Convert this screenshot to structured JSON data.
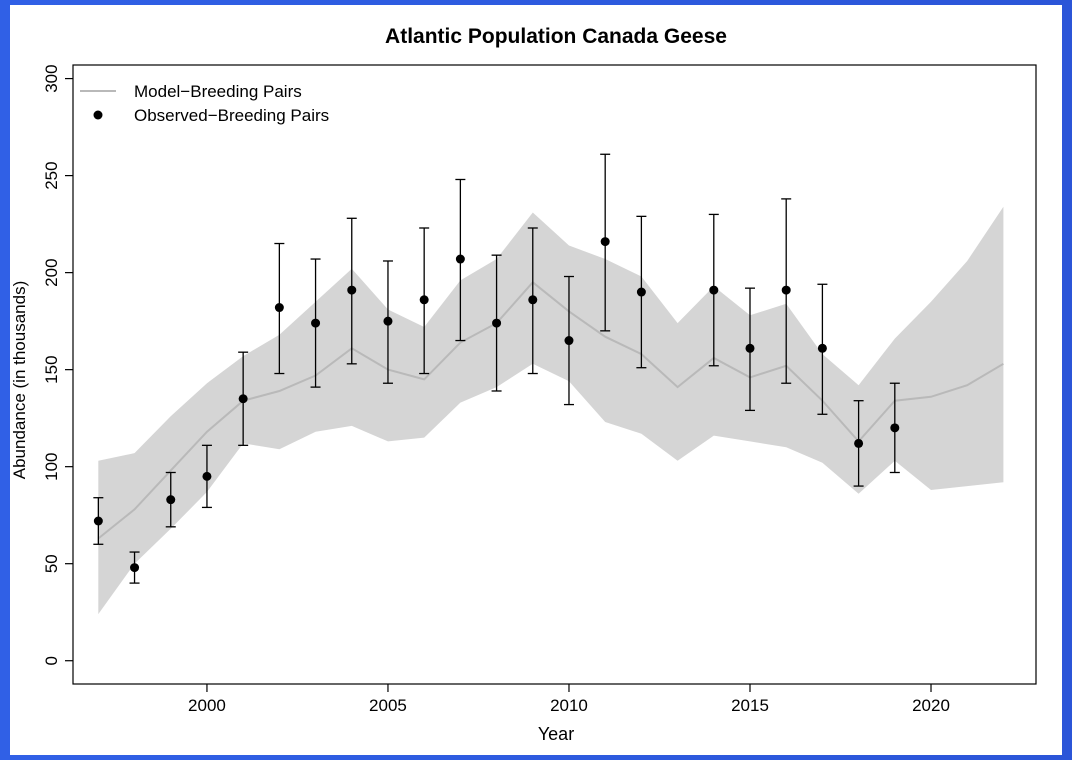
{
  "chart_data": {
    "type": "line",
    "title": "Atlantic Population Canada Geese",
    "xlabel": "Year",
    "ylabel": "Abundance (in thousands)",
    "xlim": [
      1996.3,
      2022.9
    ],
    "ylim": [
      -12,
      307
    ],
    "x_ticks": [
      2000,
      2005,
      2010,
      2015,
      2020
    ],
    "y_ticks": [
      0,
      50,
      100,
      150,
      200,
      250,
      300
    ],
    "legend_position": "top-left",
    "grid": false,
    "colors": {
      "model": "#b9b9b9",
      "band": "#d5d5d5",
      "observed": "#000000"
    },
    "model": {
      "name": "Model−Breeding Pairs",
      "x": [
        1997,
        1998,
        1999,
        2000,
        2001,
        2002,
        2003,
        2004,
        2005,
        2006,
        2007,
        2008,
        2009,
        2010,
        2011,
        2012,
        2013,
        2014,
        2015,
        2016,
        2017,
        2018,
        2019,
        2020,
        2021,
        2022
      ],
      "y": [
        63,
        78,
        98,
        118,
        134,
        139,
        147,
        161,
        150,
        145,
        164,
        174,
        195,
        180,
        167,
        158,
        141,
        156,
        146,
        152,
        134,
        113,
        134,
        136,
        142,
        153
      ],
      "lower": [
        24,
        50,
        68,
        87,
        112,
        109,
        118,
        121,
        113,
        115,
        133,
        141,
        153,
        144,
        123,
        117,
        103,
        116,
        113,
        110,
        102,
        86,
        103,
        88,
        90,
        92
      ],
      "upper": [
        103,
        107,
        126,
        143,
        157,
        168,
        185,
        202,
        181,
        172,
        196,
        207,
        231,
        214,
        207,
        198,
        174,
        193,
        178,
        184,
        158,
        142,
        166,
        185,
        206,
        234
      ]
    },
    "observed": {
      "name": "Observed−Breeding Pairs",
      "x": [
        1997,
        1998,
        1999,
        2000,
        2001,
        2002,
        2003,
        2004,
        2005,
        2006,
        2007,
        2008,
        2009,
        2010,
        2011,
        2012,
        2014,
        2015,
        2016,
        2017,
        2018,
        2019
      ],
      "y": [
        72,
        48,
        83,
        95,
        135,
        182,
        174,
        191,
        175,
        186,
        207,
        174,
        186,
        165,
        216,
        190,
        191,
        161,
        191,
        161,
        112,
        120
      ],
      "lower": [
        60,
        40,
        69,
        79,
        111,
        148,
        141,
        153,
        143,
        148,
        165,
        139,
        148,
        132,
        170,
        151,
        152,
        129,
        143,
        127,
        90,
        97
      ],
      "upper": [
        84,
        56,
        97,
        111,
        159,
        215,
        207,
        228,
        206,
        223,
        248,
        209,
        223,
        198,
        261,
        229,
        230,
        192,
        238,
        194,
        134,
        143
      ]
    }
  }
}
